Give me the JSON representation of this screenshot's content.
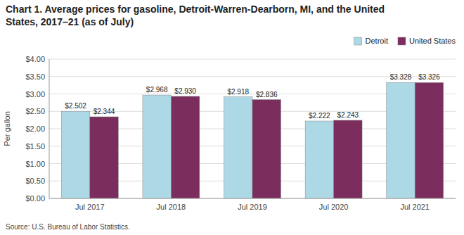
{
  "chart_data": {
    "type": "bar",
    "title": [
      "Chart 1. Average prices for gasoline,  Detroit-Warren-Dearborn, MI, and the United",
      "States, 2017–21 (as of July)"
    ],
    "ylabel": "Per gallon",
    "source": "Source:  U.S. Bureau of Labor Statistics.",
    "categories": [
      "Jul 2017",
      "Jul 2018",
      "Jul 2019",
      "Jul 2020",
      "Jul 2021"
    ],
    "series": [
      {
        "name": "Detroit",
        "color": "#ADD8E6",
        "values": [
          2.502,
          2.968,
          2.918,
          2.222,
          3.328
        ],
        "value_labels": [
          "$2.502",
          "$2.968",
          "$2.918",
          "$2.222",
          "$3.328"
        ]
      },
      {
        "name": "United States",
        "color": "#7B2D5E",
        "values": [
          2.344,
          2.93,
          2.836,
          2.243,
          3.326
        ],
        "value_labels": [
          "$2.344",
          "$2.930",
          "$2.836",
          "$2.243",
          "$3.326"
        ]
      }
    ],
    "ylim": [
      0.0,
      4.0
    ],
    "yticks": [
      {
        "value": 0.0,
        "label": "$0.00"
      },
      {
        "value": 0.5,
        "label": "$0.50"
      },
      {
        "value": 1.0,
        "label": "$1.00"
      },
      {
        "value": 1.5,
        "label": "$1.50"
      },
      {
        "value": 2.0,
        "label": "$2.00"
      },
      {
        "value": 2.5,
        "label": "$2.50"
      },
      {
        "value": 3.0,
        "label": "$3.00"
      },
      {
        "value": 3.5,
        "label": "$3.50"
      },
      {
        "value": 4.0,
        "label": "$4.00"
      }
    ],
    "grid": true,
    "legend": "upper right",
    "data_labels": true
  }
}
